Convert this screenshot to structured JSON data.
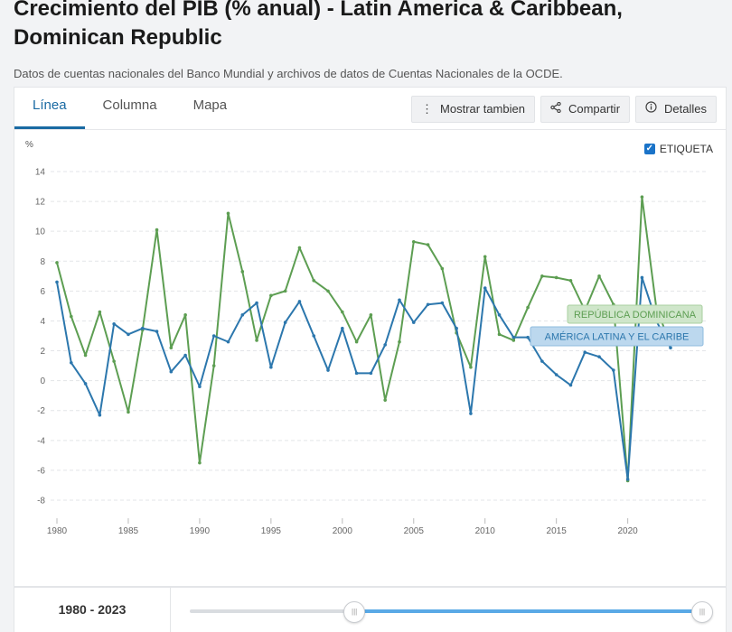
{
  "header": {
    "title": "Crecimiento del PIB (% anual) - Latin America & Caribbean, Dominican Republic",
    "subtitle": "Datos de cuentas nacionales del Banco Mundial y archivos de datos de Cuentas Nacionales de la OCDE."
  },
  "tabs": [
    {
      "label": "Línea"
    },
    {
      "label": "Columna"
    },
    {
      "label": "Mapa"
    }
  ],
  "actions": {
    "show_also": "Mostrar tambien",
    "share": "Compartir",
    "details": "Detalles"
  },
  "label_toggle": "ETIQUETA",
  "range": {
    "label": "1980 - 2023",
    "start_fraction": 0.32,
    "end_fraction": 1.0
  },
  "colors": {
    "lac": "#2c77ad",
    "dom": "#5d9e52",
    "accent": "#1a6aa3"
  },
  "chart_data": {
    "type": "line",
    "unit": "%",
    "ylim": [
      -8,
      14
    ],
    "yticks": [
      -8,
      -6,
      -4,
      -2,
      0,
      2,
      4,
      6,
      8,
      10,
      12,
      14
    ],
    "xlim": [
      1980,
      2023
    ],
    "xticks": [
      1980,
      1985,
      1990,
      1995,
      2000,
      2005,
      2010,
      2015,
      2020
    ],
    "grid": true,
    "x": [
      1980,
      1981,
      1982,
      1983,
      1984,
      1985,
      1986,
      1987,
      1988,
      1989,
      1990,
      1991,
      1992,
      1993,
      1994,
      1995,
      1996,
      1997,
      1998,
      1999,
      2000,
      2001,
      2002,
      2003,
      2004,
      2005,
      2006,
      2007,
      2008,
      2009,
      2010,
      2011,
      2012,
      2013,
      2014,
      2015,
      2016,
      2017,
      2018,
      2019,
      2020,
      2021,
      2022,
      2023
    ],
    "series": [
      {
        "name": "AMÉRICA LATINA Y EL CARIBE",
        "key": "lac",
        "values": [
          6.6,
          1.2,
          -0.2,
          -2.3,
          3.8,
          3.1,
          3.5,
          3.3,
          0.6,
          1.7,
          -0.4,
          3.0,
          2.6,
          4.4,
          5.2,
          0.9,
          3.9,
          5.3,
          3.0,
          0.7,
          3.5,
          0.5,
          0.5,
          2.4,
          5.4,
          3.9,
          5.1,
          5.2,
          3.5,
          -2.2,
          6.2,
          4.4,
          2.9,
          2.9,
          1.3,
          0.4,
          -0.3,
          1.9,
          1.6,
          0.7,
          -6.6,
          6.9,
          4.0,
          2.2
        ]
      },
      {
        "name": "REPÚBLICA DOMINICANA",
        "key": "dom",
        "values": [
          7.9,
          4.3,
          1.7,
          4.6,
          1.3,
          -2.1,
          3.4,
          10.1,
          2.2,
          4.4,
          -5.5,
          1.0,
          11.2,
          7.3,
          2.7,
          5.7,
          6.0,
          8.9,
          6.7,
          6.0,
          4.6,
          2.6,
          4.4,
          -1.3,
          2.6,
          9.3,
          9.1,
          7.5,
          3.2,
          0.9,
          8.3,
          3.1,
          2.7,
          4.9,
          7.0,
          6.9,
          6.7,
          4.7,
          7.0,
          5.1,
          -6.7,
          12.3,
          4.9,
          2.4
        ]
      }
    ]
  }
}
